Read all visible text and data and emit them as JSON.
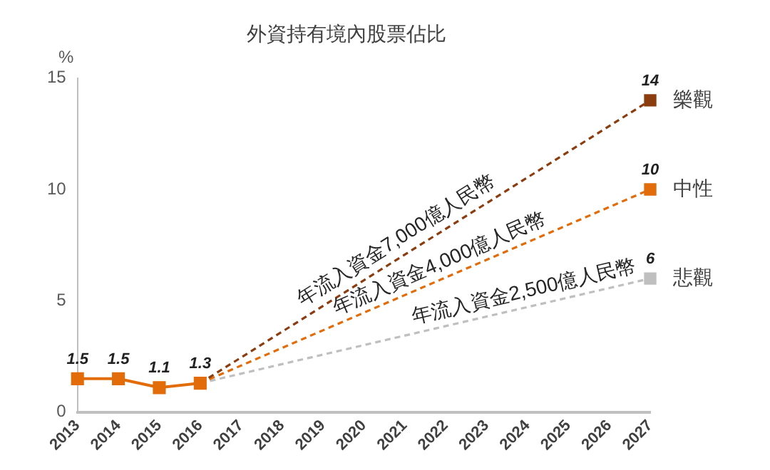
{
  "chart_data": {
    "type": "line",
    "title": "外資持有境內股票佔比",
    "ylabel": "%",
    "categories": [
      "2013",
      "2014",
      "2015",
      "2016",
      "2017",
      "2018",
      "2019",
      "2020",
      "2021",
      "2022",
      "2023",
      "2024",
      "2025",
      "2026",
      "2027"
    ],
    "series": [
      {
        "type": "line",
        "color": "#e36c0a",
        "line_style": "solid",
        "marker": "square",
        "values": [
          1.5,
          1.5,
          1.1,
          1.3,
          null,
          null,
          null,
          null,
          null,
          null,
          null,
          null,
          null,
          null,
          null
        ],
        "value_labels": [
          "1.5",
          "1.5",
          "1.1",
          "1.3",
          null,
          null,
          null,
          null,
          null,
          null,
          null,
          null,
          null,
          null,
          null
        ]
      },
      {
        "type": "line",
        "name": "樂觀",
        "color": "#8b3d10",
        "line_style": "dashed",
        "marker": "square",
        "values": [
          null,
          null,
          null,
          1.3,
          null,
          null,
          null,
          null,
          null,
          null,
          null,
          null,
          null,
          null,
          14
        ],
        "value_labels": [
          null,
          null,
          null,
          null,
          null,
          null,
          null,
          null,
          null,
          null,
          null,
          null,
          null,
          null,
          "14"
        ]
      },
      {
        "type": "line",
        "name": "中性",
        "color": "#e36c0a",
        "line_style": "dashed",
        "marker": "square",
        "values": [
          null,
          null,
          null,
          1.3,
          null,
          null,
          null,
          null,
          null,
          null,
          null,
          null,
          null,
          null,
          10
        ],
        "value_labels": [
          null,
          null,
          null,
          null,
          null,
          null,
          null,
          null,
          null,
          null,
          null,
          null,
          null,
          null,
          "10"
        ]
      },
      {
        "type": "line",
        "name": "悲觀",
        "color": "#bfbfbf",
        "line_style": "dashed",
        "marker": "square",
        "values": [
          null,
          null,
          null,
          1.3,
          null,
          null,
          null,
          null,
          null,
          null,
          null,
          null,
          null,
          null,
          6
        ],
        "value_labels": [
          null,
          null,
          null,
          null,
          null,
          null,
          null,
          null,
          null,
          null,
          null,
          null,
          null,
          null,
          "6"
        ]
      }
    ],
    "annotations": [
      {
        "text": "年流入資金7,000億人民幣",
        "x": "2021",
        "y": 7.1
      },
      {
        "text": "年流入資金4,000億人民幣",
        "x": "2022",
        "y": 6.0
      },
      {
        "text": "年流入資金2,500億人民幣",
        "x": "2024",
        "y": 4.7
      }
    ],
    "ylim": [
      0,
      15
    ],
    "yticks": [
      0,
      5,
      10,
      15
    ],
    "grid": false,
    "legend": false
  }
}
